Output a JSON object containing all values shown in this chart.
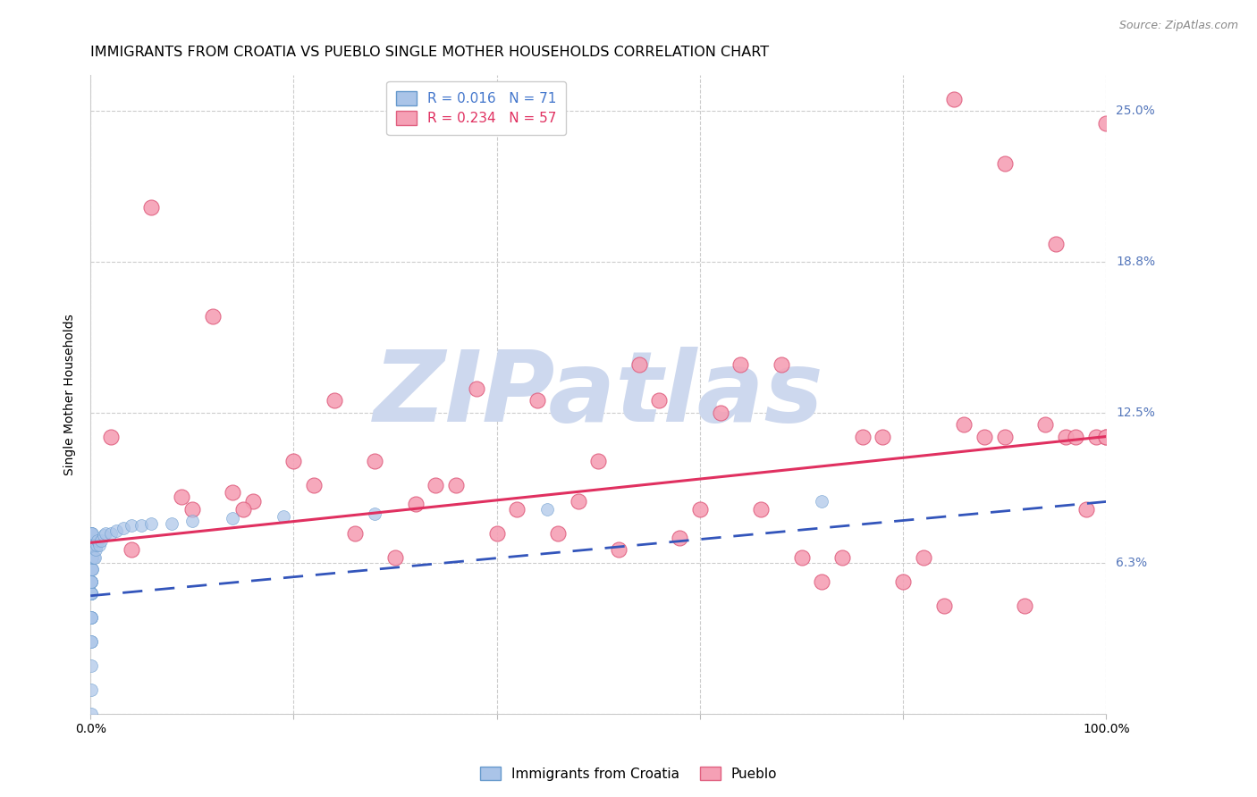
{
  "title": "IMMIGRANTS FROM CROATIA VS PUEBLO SINGLE MOTHER HOUSEHOLDS CORRELATION CHART",
  "source": "Source: ZipAtlas.com",
  "ylabel": "Single Mother Households",
  "croatia_color": "#aac4e8",
  "croatia_edge": "#6699cc",
  "pueblo_color": "#f5a0b5",
  "pueblo_edge": "#e06080",
  "background_color": "#ffffff",
  "grid_color": "#cccccc",
  "title_fontsize": 11.5,
  "label_fontsize": 10,
  "tick_fontsize": 10,
  "right_tick_color": "#5577bb",
  "watermark": "ZIPatlas",
  "watermark_color": "#cdd8ee",
  "watermark_fontsize": 80,
  "croatia_line_color": "#3355bb",
  "pueblo_line_color": "#e03060",
  "xlim": [
    0.0,
    1.0
  ],
  "ylim": [
    0.0,
    0.265
  ],
  "ytick_vals": [
    0.0,
    0.0625,
    0.125,
    0.1875,
    0.25
  ],
  "right_tick_labels": [
    "",
    "6.3%",
    "12.5%",
    "18.8%",
    "25.0%"
  ],
  "croatia_x": [
    0.0003,
    0.0003,
    0.0003,
    0.0003,
    0.0003,
    0.0003,
    0.0003,
    0.0003,
    0.0003,
    0.0004,
    0.0004,
    0.0004,
    0.0004,
    0.0004,
    0.0004,
    0.0004,
    0.0005,
    0.0005,
    0.0005,
    0.0005,
    0.0005,
    0.0005,
    0.0006,
    0.0006,
    0.0006,
    0.0006,
    0.0007,
    0.0007,
    0.0007,
    0.0007,
    0.0008,
    0.0008,
    0.0008,
    0.0009,
    0.0009,
    0.001,
    0.001,
    0.001,
    0.001,
    0.0012,
    0.0012,
    0.0013,
    0.0015,
    0.0015,
    0.002,
    0.002,
    0.002,
    0.003,
    0.003,
    0.004,
    0.004,
    0.005,
    0.006,
    0.007,
    0.009,
    0.01,
    0.013,
    0.015,
    0.02,
    0.025,
    0.032,
    0.04,
    0.05,
    0.06,
    0.08,
    0.1,
    0.14,
    0.19,
    0.28,
    0.45,
    0.72
  ],
  "croatia_y": [
    0.0,
    0.01,
    0.02,
    0.03,
    0.04,
    0.05,
    0.055,
    0.06,
    0.065,
    0.03,
    0.04,
    0.05,
    0.06,
    0.065,
    0.07,
    0.075,
    0.04,
    0.05,
    0.06,
    0.065,
    0.07,
    0.075,
    0.05,
    0.055,
    0.06,
    0.07,
    0.05,
    0.06,
    0.07,
    0.075,
    0.055,
    0.065,
    0.07,
    0.06,
    0.07,
    0.055,
    0.06,
    0.065,
    0.075,
    0.06,
    0.07,
    0.065,
    0.06,
    0.07,
    0.065,
    0.07,
    0.075,
    0.065,
    0.07,
    0.065,
    0.07,
    0.068,
    0.07,
    0.072,
    0.07,
    0.072,
    0.074,
    0.075,
    0.075,
    0.076,
    0.077,
    0.078,
    0.078,
    0.079,
    0.079,
    0.08,
    0.081,
    0.082,
    0.083,
    0.085,
    0.088
  ],
  "pueblo_x": [
    0.02,
    0.04,
    0.06,
    0.09,
    0.1,
    0.12,
    0.14,
    0.16,
    0.2,
    0.22,
    0.24,
    0.26,
    0.28,
    0.3,
    0.32,
    0.34,
    0.36,
    0.38,
    0.4,
    0.42,
    0.44,
    0.46,
    0.48,
    0.5,
    0.52,
    0.54,
    0.56,
    0.58,
    0.6,
    0.62,
    0.64,
    0.66,
    0.68,
    0.7,
    0.72,
    0.74,
    0.76,
    0.78,
    0.8,
    0.82,
    0.84,
    0.86,
    0.88,
    0.9,
    0.92,
    0.94,
    0.96,
    0.97,
    0.98,
    0.99,
    1.0,
    1.0,
    1.0,
    0.15,
    0.85,
    0.9,
    0.95
  ],
  "pueblo_y": [
    0.115,
    0.068,
    0.21,
    0.09,
    0.085,
    0.165,
    0.092,
    0.088,
    0.105,
    0.095,
    0.13,
    0.075,
    0.105,
    0.065,
    0.087,
    0.095,
    0.095,
    0.135,
    0.075,
    0.085,
    0.13,
    0.075,
    0.088,
    0.105,
    0.068,
    0.145,
    0.13,
    0.073,
    0.085,
    0.125,
    0.145,
    0.085,
    0.145,
    0.065,
    0.055,
    0.065,
    0.115,
    0.115,
    0.055,
    0.065,
    0.045,
    0.12,
    0.115,
    0.115,
    0.045,
    0.12,
    0.115,
    0.115,
    0.085,
    0.115,
    0.115,
    0.115,
    0.245,
    0.085,
    0.255,
    0.228,
    0.195
  ],
  "croatia_line_x": [
    0.0,
    1.0
  ],
  "croatia_line_y": [
    0.049,
    0.088
  ],
  "pueblo_line_x": [
    0.0,
    1.0
  ],
  "pueblo_line_y": [
    0.071,
    0.115
  ],
  "legend_text_1": "R = 0.016   N = 71",
  "legend_text_2": "R = 0.234   N = 57",
  "legend_color_1": "#4477cc",
  "legend_color_2": "#e03060",
  "bottom_legend_1": "Immigrants from Croatia",
  "bottom_legend_2": "Pueblo"
}
